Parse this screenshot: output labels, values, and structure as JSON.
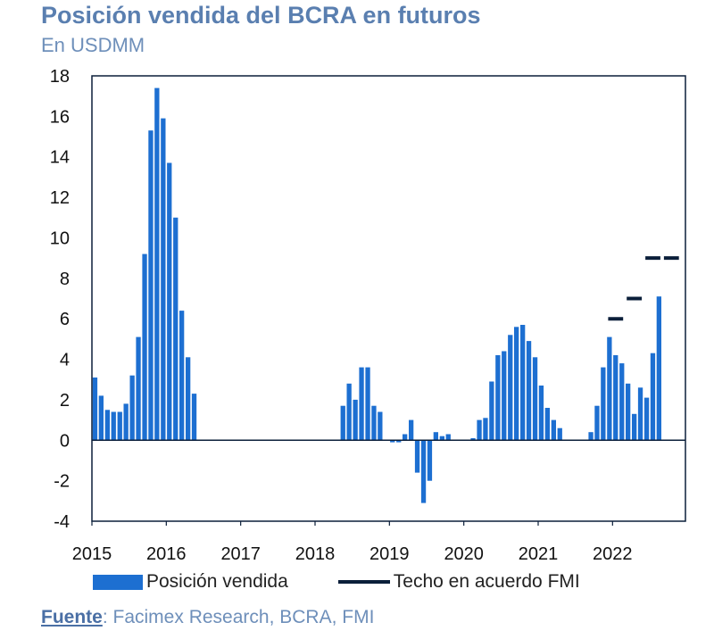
{
  "header": {
    "title": "Posición vendida del BCRA en futuros",
    "subtitle": "En USDMM"
  },
  "legend": {
    "bars_label": "Posición vendida",
    "line_label": "Techo en acuerdo FMI"
  },
  "source": {
    "label": "Fuente",
    "text": ": Facimex Research, BCRA, FMI"
  },
  "colors": {
    "bars": "#1d6fd1",
    "ceiling": "#0b1f3a",
    "axis": "#0b1f3a",
    "title": "#5a7fb0"
  },
  "chart_data": {
    "type": "bar",
    "title": "Posición vendida del BCRA en futuros",
    "subtitle": "En USDMM",
    "ylim": [
      -4,
      18
    ],
    "yticks": [
      18,
      16,
      14,
      12,
      10,
      8,
      6,
      4,
      2,
      0,
      -2,
      -4
    ],
    "xlim": [
      2015,
      2022.98
    ],
    "xticks": [
      "2015",
      "2016",
      "2017",
      "2018",
      "2019",
      "2020",
      "2021",
      "2022"
    ],
    "grid": false,
    "legend_position": "bottom",
    "series": [
      {
        "name": "Posición vendida",
        "type": "bar",
        "x": [
          2015.0,
          2015.083,
          2015.167,
          2015.25,
          2015.333,
          2015.417,
          2015.5,
          2015.583,
          2015.667,
          2015.75,
          2015.833,
          2015.917,
          2016.0,
          2016.083,
          2016.167,
          2016.25,
          2016.333,
          2016.417,
          2018.333,
          2018.417,
          2018.5,
          2018.583,
          2018.667,
          2018.75,
          2018.833,
          2019.0,
          2019.083,
          2019.167,
          2019.25,
          2019.333,
          2019.417,
          2019.5,
          2019.583,
          2019.667,
          2019.75,
          2020.083,
          2020.167,
          2020.25,
          2020.333,
          2020.417,
          2020.5,
          2020.583,
          2020.667,
          2020.75,
          2020.833,
          2020.917,
          2021.0,
          2021.083,
          2021.167,
          2021.25,
          2021.667,
          2021.75,
          2021.833,
          2021.917,
          2022.0,
          2022.083,
          2022.167,
          2022.25,
          2022.333,
          2022.417,
          2022.5
        ],
        "values": [
          3.1,
          2.2,
          1.5,
          1.4,
          1.4,
          1.8,
          3.2,
          5.1,
          9.2,
          15.3,
          17.4,
          15.9,
          13.7,
          11.0,
          6.4,
          4.1,
          2.3,
          0.0,
          1.7,
          2.8,
          2.0,
          3.6,
          3.6,
          1.7,
          1.4,
          -0.1,
          -0.1,
          0.3,
          1.0,
          -1.6,
          -3.1,
          -2.0,
          0.4,
          0.2,
          0.3,
          0.1,
          1.0,
          1.1,
          2.9,
          4.2,
          4.4,
          5.2,
          5.6,
          5.7,
          4.9,
          4.1,
          2.7,
          1.6,
          1.0,
          0.6,
          0.4,
          1.7,
          3.6,
          5.1,
          4.2,
          3.8,
          2.8,
          1.3,
          2.6,
          2.1,
          4.3
        ]
      },
      {
        "name": "Techo en acuerdo FMI",
        "type": "step-line",
        "points": [
          {
            "x_start": 2021.917,
            "x_end": 2022.167,
            "value": 6.0
          },
          {
            "x_start": 2022.167,
            "x_end": 2022.417,
            "value": 7.0
          },
          {
            "x_start": 2022.417,
            "x_end": 2022.667,
            "value": 9.0
          },
          {
            "x_start": 2022.667,
            "x_end": 2022.917,
            "value": 9.0
          }
        ]
      }
    ],
    "extra_bar": {
      "x": 2022.5,
      "value": 7.1
    }
  }
}
